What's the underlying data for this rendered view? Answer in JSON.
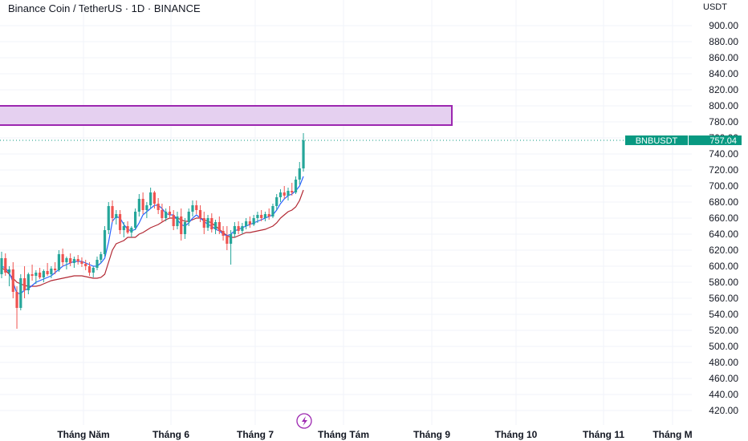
{
  "header": {
    "title": "Binance Coin / TetherUS · 1D · BINANCE",
    "currency": "USDT"
  },
  "chart_data": {
    "type": "candlestick",
    "symbol": "BNBUSDT",
    "last_price": 757.04,
    "last_price_label": "757.04",
    "ylim": [
      410,
      915
    ],
    "y_ticks": [
      "900.00",
      "880.00",
      "860.00",
      "840.00",
      "820.00",
      "800.00",
      "780.00",
      "760.00",
      "740.00",
      "720.00",
      "700.00",
      "680.00",
      "660.00",
      "640.00",
      "620.00",
      "600.00",
      "580.00",
      "560.00",
      "540.00",
      "520.00",
      "500.00",
      "480.00",
      "460.00",
      "440.00",
      "420.00"
    ],
    "x_ticks": [
      "Tháng Năm",
      "Tháng 6",
      "Tháng 7",
      "Tháng Tám",
      "Tháng 9",
      "Tháng 10",
      "Tháng 11",
      "Tháng M"
    ],
    "zone": {
      "low": 776,
      "high": 800
    },
    "colors": {
      "up": "#26a69a",
      "down": "#ef5350",
      "fast_line": "#2962ff",
      "slow_line": "#b22833",
      "zone_fill": "#e5d0f0",
      "zone_border": "#9c27b0",
      "price_tag": "#089981"
    },
    "candles": [
      {
        "o": 590,
        "h": 618,
        "l": 585,
        "c": 610
      },
      {
        "o": 610,
        "h": 616,
        "l": 588,
        "c": 592
      },
      {
        "o": 592,
        "h": 600,
        "l": 575,
        "c": 596
      },
      {
        "o": 596,
        "h": 605,
        "l": 560,
        "c": 568
      },
      {
        "o": 568,
        "h": 575,
        "l": 522,
        "c": 548
      },
      {
        "o": 548,
        "h": 590,
        "l": 545,
        "c": 585
      },
      {
        "o": 585,
        "h": 600,
        "l": 560,
        "c": 570
      },
      {
        "o": 570,
        "h": 592,
        "l": 565,
        "c": 590
      },
      {
        "o": 590,
        "h": 602,
        "l": 582,
        "c": 588
      },
      {
        "o": 588,
        "h": 595,
        "l": 578,
        "c": 592
      },
      {
        "o": 592,
        "h": 598,
        "l": 584,
        "c": 586
      },
      {
        "o": 586,
        "h": 596,
        "l": 580,
        "c": 594
      },
      {
        "o": 594,
        "h": 604,
        "l": 588,
        "c": 590
      },
      {
        "o": 590,
        "h": 600,
        "l": 585,
        "c": 597
      },
      {
        "o": 597,
        "h": 605,
        "l": 590,
        "c": 595
      },
      {
        "o": 595,
        "h": 620,
        "l": 593,
        "c": 615
      },
      {
        "o": 615,
        "h": 622,
        "l": 600,
        "c": 605
      },
      {
        "o": 605,
        "h": 612,
        "l": 596,
        "c": 610
      },
      {
        "o": 610,
        "h": 616,
        "l": 600,
        "c": 604
      },
      {
        "o": 604,
        "h": 612,
        "l": 598,
        "c": 609
      },
      {
        "o": 609,
        "h": 614,
        "l": 602,
        "c": 606
      },
      {
        "o": 606,
        "h": 611,
        "l": 599,
        "c": 603
      },
      {
        "o": 603,
        "h": 608,
        "l": 595,
        "c": 600
      },
      {
        "o": 600,
        "h": 605,
        "l": 588,
        "c": 592
      },
      {
        "o": 592,
        "h": 600,
        "l": 586,
        "c": 598
      },
      {
        "o": 598,
        "h": 612,
        "l": 595,
        "c": 608
      },
      {
        "o": 608,
        "h": 618,
        "l": 604,
        "c": 615
      },
      {
        "o": 615,
        "h": 650,
        "l": 612,
        "c": 645
      },
      {
        "o": 645,
        "h": 680,
        "l": 640,
        "c": 675
      },
      {
        "o": 675,
        "h": 682,
        "l": 655,
        "c": 660
      },
      {
        "o": 660,
        "h": 670,
        "l": 652,
        "c": 665
      },
      {
        "o": 665,
        "h": 670,
        "l": 640,
        "c": 645
      },
      {
        "o": 645,
        "h": 655,
        "l": 636,
        "c": 650
      },
      {
        "o": 650,
        "h": 656,
        "l": 640,
        "c": 642
      },
      {
        "o": 642,
        "h": 650,
        "l": 636,
        "c": 648
      },
      {
        "o": 648,
        "h": 672,
        "l": 645,
        "c": 668
      },
      {
        "o": 668,
        "h": 690,
        "l": 662,
        "c": 684
      },
      {
        "o": 684,
        "h": 692,
        "l": 665,
        "c": 670
      },
      {
        "o": 670,
        "h": 680,
        "l": 660,
        "c": 676
      },
      {
        "o": 676,
        "h": 698,
        "l": 672,
        "c": 692
      },
      {
        "o": 692,
        "h": 694,
        "l": 672,
        "c": 678
      },
      {
        "o": 678,
        "h": 685,
        "l": 665,
        "c": 670
      },
      {
        "o": 670,
        "h": 678,
        "l": 655,
        "c": 660
      },
      {
        "o": 660,
        "h": 672,
        "l": 656,
        "c": 668
      },
      {
        "o": 668,
        "h": 675,
        "l": 660,
        "c": 664
      },
      {
        "o": 664,
        "h": 670,
        "l": 645,
        "c": 650
      },
      {
        "o": 650,
        "h": 668,
        "l": 646,
        "c": 662
      },
      {
        "o": 662,
        "h": 672,
        "l": 632,
        "c": 640
      },
      {
        "o": 640,
        "h": 660,
        "l": 634,
        "c": 655
      },
      {
        "o": 655,
        "h": 672,
        "l": 650,
        "c": 668
      },
      {
        "o": 668,
        "h": 682,
        "l": 662,
        "c": 676
      },
      {
        "o": 676,
        "h": 682,
        "l": 665,
        "c": 670
      },
      {
        "o": 670,
        "h": 676,
        "l": 655,
        "c": 660
      },
      {
        "o": 660,
        "h": 668,
        "l": 640,
        "c": 648
      },
      {
        "o": 648,
        "h": 664,
        "l": 644,
        "c": 660
      },
      {
        "o": 660,
        "h": 666,
        "l": 642,
        "c": 646
      },
      {
        "o": 646,
        "h": 658,
        "l": 640,
        "c": 655
      },
      {
        "o": 655,
        "h": 662,
        "l": 640,
        "c": 644
      },
      {
        "o": 644,
        "h": 650,
        "l": 632,
        "c": 638
      },
      {
        "o": 638,
        "h": 650,
        "l": 620,
        "c": 628
      },
      {
        "o": 628,
        "h": 645,
        "l": 602,
        "c": 640
      },
      {
        "o": 640,
        "h": 655,
        "l": 636,
        "c": 650
      },
      {
        "o": 650,
        "h": 656,
        "l": 640,
        "c": 644
      },
      {
        "o": 644,
        "h": 654,
        "l": 640,
        "c": 650
      },
      {
        "o": 650,
        "h": 660,
        "l": 646,
        "c": 656
      },
      {
        "o": 656,
        "h": 662,
        "l": 648,
        "c": 652
      },
      {
        "o": 652,
        "h": 664,
        "l": 650,
        "c": 660
      },
      {
        "o": 660,
        "h": 668,
        "l": 654,
        "c": 664
      },
      {
        "o": 664,
        "h": 670,
        "l": 656,
        "c": 660
      },
      {
        "o": 660,
        "h": 668,
        "l": 656,
        "c": 665
      },
      {
        "o": 665,
        "h": 672,
        "l": 658,
        "c": 662
      },
      {
        "o": 662,
        "h": 678,
        "l": 660,
        "c": 675
      },
      {
        "o": 675,
        "h": 690,
        "l": 670,
        "c": 686
      },
      {
        "o": 686,
        "h": 696,
        "l": 680,
        "c": 692
      },
      {
        "o": 692,
        "h": 700,
        "l": 684,
        "c": 688
      },
      {
        "o": 688,
        "h": 698,
        "l": 682,
        "c": 694
      },
      {
        "o": 694,
        "h": 704,
        "l": 688,
        "c": 692
      },
      {
        "o": 692,
        "h": 712,
        "l": 690,
        "c": 708
      },
      {
        "o": 708,
        "h": 730,
        "l": 702,
        "c": 722
      },
      {
        "o": 722,
        "h": 766,
        "l": 718,
        "c": 757
      }
    ],
    "fast_line": [
      600,
      598,
      592,
      580,
      566,
      566,
      570,
      572,
      576,
      580,
      582,
      584,
      586,
      588,
      592,
      596,
      600,
      602,
      604,
      606,
      606,
      606,
      604,
      602,
      600,
      600,
      604,
      610,
      630,
      656,
      662,
      660,
      652,
      646,
      644,
      646,
      654,
      664,
      668,
      672,
      676,
      676,
      672,
      666,
      664,
      664,
      658,
      652,
      650,
      654,
      660,
      664,
      660,
      656,
      652,
      650,
      646,
      644,
      640,
      638,
      640,
      644,
      646,
      648,
      650,
      652,
      654,
      656,
      658,
      660,
      662,
      664,
      670,
      678,
      684,
      688,
      690,
      694,
      700,
      712
    ],
    "slow_line": [
      598,
      595,
      590,
      585,
      580,
      578,
      576,
      575,
      575,
      575,
      576,
      578,
      580,
      582,
      583,
      584,
      585,
      586,
      587,
      588,
      588,
      588,
      587,
      586,
      585,
      585,
      586,
      590,
      605,
      620,
      628,
      630,
      632,
      636,
      636,
      636,
      640,
      642,
      645,
      648,
      650,
      652,
      655,
      658,
      660,
      660,
      660,
      658,
      656,
      656,
      658,
      660,
      660,
      658,
      656,
      654,
      650,
      646,
      642,
      638,
      636,
      636,
      638,
      640,
      642,
      642,
      643,
      644,
      645,
      646,
      648,
      650,
      654,
      660,
      664,
      668,
      670,
      674,
      682,
      695
    ]
  }
}
